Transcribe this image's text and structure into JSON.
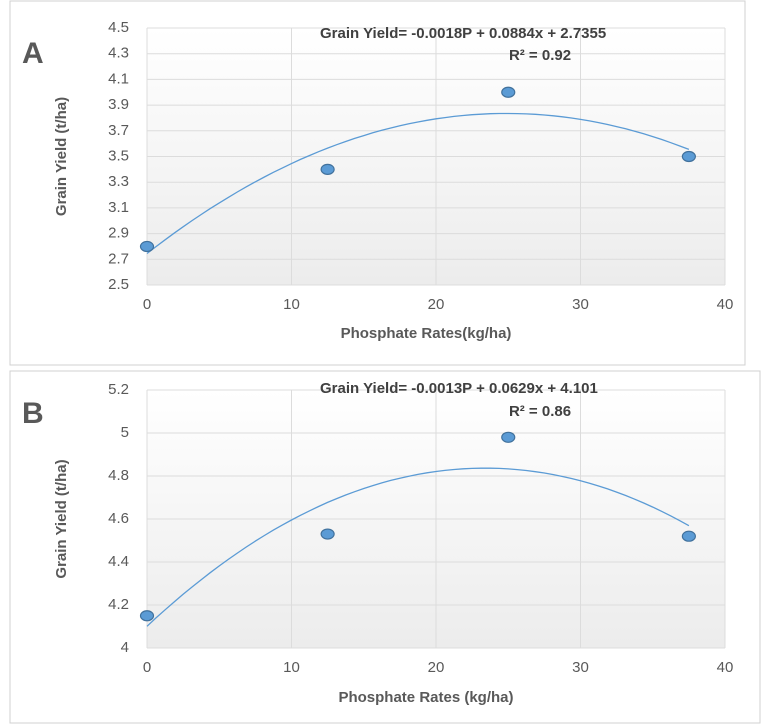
{
  "chart_data": [
    {
      "type": "scatter",
      "label": "A",
      "equation": "Grain Yield= -0.0018P + 0.0884x + 2.7355",
      "r_squared": "R² = 0.92",
      "x_label": "Phosphate Rates(kg/ha)",
      "y_label": "Grain Yield (t/ha)",
      "x": [
        0,
        12.5,
        25,
        37.5
      ],
      "values": [
        2.8,
        3.4,
        4.0,
        3.5
      ],
      "color": "#5b9bd5",
      "xlim": [
        0,
        40
      ],
      "xticks": [
        0,
        10,
        20,
        30,
        40
      ],
      "ylim": [
        2.5,
        4.5
      ],
      "yticks": [
        2.5,
        2.7,
        2.9,
        3.1,
        3.3,
        3.5,
        3.7,
        3.9,
        4.1,
        4.3,
        4.5
      ],
      "grid": true
    },
    {
      "type": "scatter",
      "label": "B",
      "equation": "Grain Yield= -0.0013P + 0.0629x + 4.101",
      "r_squared": "R² = 0.86",
      "x_label": "Phosphate Rates (kg/ha)",
      "y_label": "Grain Yield (t/ha)",
      "x": [
        0,
        12.5,
        25,
        37.5
      ],
      "values": [
        4.15,
        4.53,
        4.98,
        4.52
      ],
      "color": "#5b9bd5",
      "xlim": [
        0,
        40
      ],
      "xticks": [
        0,
        10,
        20,
        30,
        40
      ],
      "ylim": [
        4,
        5.2
      ],
      "yticks": [
        4,
        4.2,
        4.4,
        4.6,
        4.8,
        5,
        5.2
      ],
      "grid": true
    }
  ]
}
